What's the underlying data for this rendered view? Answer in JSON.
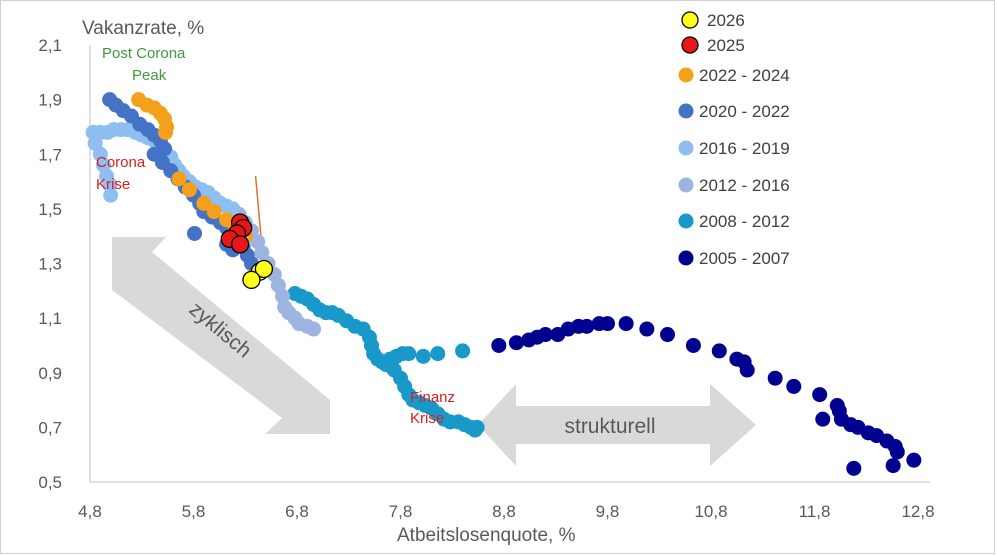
{
  "chart_data": {
    "type": "scatter",
    "xlabel": "Atbeitslosenquote, %",
    "ylabel": "Vakanzrate, %",
    "x_ticks": [
      "4,8",
      "5,8",
      "6,8",
      "7,8",
      "8,8",
      "9,8",
      "10,8",
      "11,8",
      "12,8"
    ],
    "y_ticks": [
      "0,5",
      "0,7",
      "0,9",
      "1,1",
      "1,3",
      "1,5",
      "1,7",
      "1,9",
      "2,1"
    ],
    "xlim": [
      4.8,
      12.8
    ],
    "ylim": [
      0.5,
      2.1
    ],
    "legend_position": "right",
    "series": [
      {
        "name": "2026",
        "color": "#ffff1a",
        "stroke": "#000000",
        "marker_size": 8.5,
        "points": [
          [
            6.44,
            1.27
          ],
          [
            6.48,
            1.28
          ],
          [
            6.36,
            1.24
          ]
        ]
      },
      {
        "name": "2025",
        "color": "#e81616",
        "stroke": "#000000",
        "marker_size": 8.5,
        "points": [
          [
            6.25,
            1.45
          ],
          [
            6.28,
            1.43
          ],
          [
            6.22,
            1.41
          ],
          [
            6.15,
            1.39
          ],
          [
            6.25,
            1.37
          ]
        ]
      },
      {
        "name": "2022 - 2024",
        "color": "#f5a01a",
        "stroke": "none",
        "marker_size": 7.5,
        "points": [
          [
            5.27,
            1.9
          ],
          [
            5.35,
            1.88
          ],
          [
            5.42,
            1.87
          ],
          [
            5.48,
            1.85
          ],
          [
            5.52,
            1.83
          ],
          [
            5.54,
            1.8
          ],
          [
            5.53,
            1.78
          ],
          [
            5.66,
            1.61
          ],
          [
            5.76,
            1.57
          ],
          [
            5.9,
            1.52
          ],
          [
            6.0,
            1.49
          ],
          [
            6.12,
            1.46
          ],
          [
            6.2,
            1.44
          ],
          [
            6.3,
            1.4
          ]
        ]
      },
      {
        "name": "2020 - 2022",
        "color": "#4472c4",
        "stroke": "none",
        "marker_size": 7.5,
        "points": [
          [
            4.99,
            1.9
          ],
          [
            5.05,
            1.88
          ],
          [
            5.12,
            1.86
          ],
          [
            5.2,
            1.84
          ],
          [
            5.28,
            1.81
          ],
          [
            5.36,
            1.79
          ],
          [
            5.42,
            1.77
          ],
          [
            5.48,
            1.75
          ],
          [
            5.52,
            1.72
          ],
          [
            5.42,
            1.7
          ],
          [
            5.5,
            1.67
          ],
          [
            5.58,
            1.64
          ],
          [
            5.65,
            1.61
          ],
          [
            5.72,
            1.58
          ],
          [
            5.8,
            1.55
          ],
          [
            5.86,
            1.52
          ],
          [
            5.9,
            1.49
          ],
          [
            5.98,
            1.47
          ],
          [
            6.06,
            1.45
          ],
          [
            6.12,
            1.43
          ],
          [
            6.18,
            1.41
          ],
          [
            6.24,
            1.39
          ],
          [
            6.28,
            1.36
          ],
          [
            6.32,
            1.33
          ],
          [
            6.36,
            1.3
          ],
          [
            6.12,
            1.37
          ],
          [
            6.18,
            1.35
          ],
          [
            5.81,
            1.41
          ]
        ]
      },
      {
        "name": "2016 - 2019",
        "color": "#8fbef0",
        "stroke": "none",
        "marker_size": 7.5,
        "points": [
          [
            4.83,
            1.78
          ],
          [
            4.9,
            1.78
          ],
          [
            4.97,
            1.78
          ],
          [
            5.03,
            1.79
          ],
          [
            5.1,
            1.79
          ],
          [
            5.17,
            1.79
          ],
          [
            5.24,
            1.78
          ],
          [
            5.3,
            1.77
          ],
          [
            5.36,
            1.76
          ],
          [
            5.42,
            1.75
          ],
          [
            5.48,
            1.73
          ],
          [
            5.53,
            1.71
          ],
          [
            5.58,
            1.69
          ],
          [
            5.62,
            1.66
          ],
          [
            5.66,
            1.64
          ],
          [
            5.7,
            1.62
          ],
          [
            5.76,
            1.6
          ],
          [
            5.82,
            1.58
          ],
          [
            5.88,
            1.57
          ],
          [
            5.94,
            1.56
          ],
          [
            6.0,
            1.54
          ],
          [
            6.06,
            1.52
          ],
          [
            6.12,
            1.51
          ],
          [
            6.18,
            1.5
          ],
          [
            4.85,
            1.74
          ],
          [
            4.9,
            1.7
          ],
          [
            4.93,
            1.66
          ],
          [
            4.96,
            1.62
          ],
          [
            4.99,
            1.59
          ],
          [
            5.0,
            1.55
          ]
        ]
      },
      {
        "name": "2012 - 2016",
        "color": "#9db4e0",
        "stroke": "none",
        "marker_size": 7.5,
        "points": [
          [
            6.24,
            1.48
          ],
          [
            6.3,
            1.45
          ],
          [
            6.36,
            1.42
          ],
          [
            6.42,
            1.38
          ],
          [
            6.46,
            1.34
          ],
          [
            6.52,
            1.3
          ],
          [
            6.58,
            1.26
          ],
          [
            6.62,
            1.22
          ],
          [
            6.66,
            1.18
          ],
          [
            6.68,
            1.14
          ],
          [
            6.72,
            1.12
          ],
          [
            6.78,
            1.1
          ],
          [
            6.82,
            1.08
          ],
          [
            6.9,
            1.07
          ],
          [
            6.96,
            1.06
          ]
        ]
      },
      {
        "name": "2008 - 2012",
        "color": "#1899c9",
        "stroke": "none",
        "marker_size": 7.5,
        "points": [
          [
            6.78,
            1.19
          ],
          [
            6.84,
            1.18
          ],
          [
            6.9,
            1.17
          ],
          [
            6.96,
            1.15
          ],
          [
            7.02,
            1.13
          ],
          [
            7.08,
            1.12
          ],
          [
            7.14,
            1.12
          ],
          [
            7.2,
            1.11
          ],
          [
            7.28,
            1.09
          ],
          [
            7.36,
            1.07
          ],
          [
            7.44,
            1.06
          ],
          [
            7.5,
            1.03
          ],
          [
            7.52,
            1.0
          ],
          [
            7.54,
            0.97
          ],
          [
            7.58,
            0.95
          ],
          [
            7.62,
            0.94
          ],
          [
            7.66,
            0.93
          ],
          [
            7.72,
            0.92
          ],
          [
            7.74,
            0.91
          ],
          [
            7.7,
            0.95
          ],
          [
            7.76,
            0.96
          ],
          [
            7.82,
            0.97
          ],
          [
            7.88,
            0.97
          ],
          [
            8.02,
            0.96
          ],
          [
            8.16,
            0.97
          ],
          [
            8.4,
            0.98
          ],
          [
            7.8,
            0.88
          ],
          [
            7.84,
            0.85
          ],
          [
            7.88,
            0.82
          ],
          [
            7.92,
            0.8
          ],
          [
            7.98,
            0.79
          ],
          [
            8.04,
            0.78
          ],
          [
            8.1,
            0.77
          ],
          [
            8.16,
            0.75
          ],
          [
            8.22,
            0.73
          ],
          [
            8.28,
            0.72
          ],
          [
            8.36,
            0.72
          ],
          [
            8.42,
            0.71
          ],
          [
            8.48,
            0.7
          ],
          [
            8.52,
            0.69
          ],
          [
            8.54,
            0.7
          ]
        ]
      },
      {
        "name": "2005 - 2007",
        "color": "#000090",
        "stroke": "none",
        "marker_size": 7.5,
        "points": [
          [
            8.75,
            1.0
          ],
          [
            8.92,
            1.01
          ],
          [
            9.04,
            1.02
          ],
          [
            9.12,
            1.03
          ],
          [
            9.2,
            1.04
          ],
          [
            9.32,
            1.04
          ],
          [
            9.42,
            1.06
          ],
          [
            9.52,
            1.07
          ],
          [
            9.6,
            1.07
          ],
          [
            9.72,
            1.08
          ],
          [
            9.8,
            1.08
          ],
          [
            9.98,
            1.08
          ],
          [
            10.18,
            1.06
          ],
          [
            10.38,
            1.04
          ],
          [
            10.63,
            1.0
          ],
          [
            10.88,
            0.98
          ],
          [
            11.05,
            0.95
          ],
          [
            11.12,
            0.94
          ],
          [
            11.15,
            0.91
          ],
          [
            11.42,
            0.88
          ],
          [
            11.6,
            0.85
          ],
          [
            11.85,
            0.82
          ],
          [
            12.02,
            0.78
          ],
          [
            12.04,
            0.76
          ],
          [
            12.06,
            0.73
          ],
          [
            11.88,
            0.73
          ],
          [
            12.15,
            0.71
          ],
          [
            12.22,
            0.7
          ],
          [
            12.32,
            0.68
          ],
          [
            12.4,
            0.67
          ],
          [
            12.5,
            0.65
          ],
          [
            12.58,
            0.63
          ],
          [
            12.6,
            0.61
          ],
          [
            12.56,
            0.56
          ],
          [
            12.76,
            0.58
          ],
          [
            12.18,
            0.55
          ]
        ]
      }
    ],
    "annotations": [
      {
        "text": "Post Corona",
        "color": "#3d9a3d"
      },
      {
        "text": "Peak",
        "color": "#3d9a3d"
      },
      {
        "text": "Corona",
        "color": "#d81e1e"
      },
      {
        "text": "Krise",
        "color": "#d81e1e"
      },
      {
        "text": "Finanz",
        "color": "#d81e1e"
      },
      {
        "text": "Krise",
        "color": "#d81e1e"
      },
      {
        "text": "zyklisch",
        "color": "#595959"
      },
      {
        "text": "strukturell",
        "color": "#595959"
      }
    ],
    "trend_line": {
      "color": "#e0702a",
      "from": [
        6.4,
        1.62
      ],
      "to": [
        6.48,
        1.28
      ]
    }
  }
}
